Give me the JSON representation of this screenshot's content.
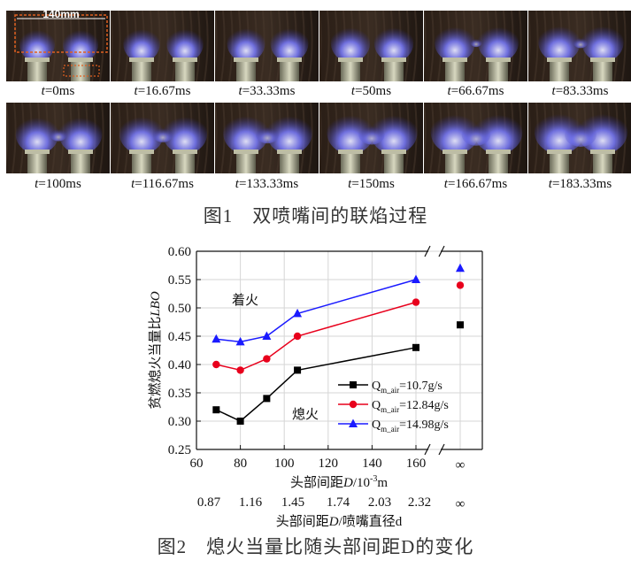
{
  "figure1": {
    "frames": [
      {
        "label_var": "t",
        "label_value": "=0ms"
      },
      {
        "label_var": "t",
        "label_value": "=16.67ms"
      },
      {
        "label_var": "t",
        "label_value": "=33.33ms"
      },
      {
        "label_var": "t",
        "label_value": "=50ms"
      },
      {
        "label_var": "t",
        "label_value": "=66.67ms"
      },
      {
        "label_var": "t",
        "label_value": "=83.33ms"
      },
      {
        "label_var": "t",
        "label_value": "=100ms"
      },
      {
        "label_var": "t",
        "label_value": "=116.67ms"
      },
      {
        "label_var": "t",
        "label_value": "=133.33ms"
      },
      {
        "label_var": "t",
        "label_value": "=150ms"
      },
      {
        "label_var": "t",
        "label_value": "=166.67ms"
      },
      {
        "label_var": "t",
        "label_value": "=183.33ms"
      }
    ],
    "scale_annotation": "140mm",
    "caption": "图1　双喷嘴间的联焰过程"
  },
  "figure2": {
    "caption": "图2　熄火当量比随头部间距D的变化"
  },
  "chart_data": {
    "type": "line",
    "ylabel_prefix": "贫燃熄火当量比",
    "ylabel_italic": "LBO",
    "xlabel_prefix": "头部间距",
    "xlabel_italic": "D",
    "xlabel_suffix": "/10",
    "xlabel_sup": "-3",
    "xlabel_unit": "m",
    "x2label_prefix": "头部间距",
    "x2label_italic": "D",
    "x2label_suffix": "/喷嘴直径d",
    "xticks": [
      "60",
      "80",
      "100",
      "120",
      "140",
      "160"
    ],
    "x_inf_label": "∞",
    "x2ticks": [
      "0.87",
      "1.16",
      "1.45",
      "1.74",
      "2.03",
      "2.32"
    ],
    "x2_inf_label": "∞",
    "yticks": [
      "0.25",
      "0.30",
      "0.35",
      "0.40",
      "0.45",
      "0.50",
      "0.55",
      "0.60"
    ],
    "xlim": [
      60,
      170
    ],
    "ylim": [
      0.25,
      0.6
    ],
    "grid": true,
    "legend_position": "lower-right",
    "annotations": {
      "ignition": "着火",
      "extinction": "熄火"
    },
    "series": [
      {
        "name_base": "Q",
        "name_sub": "m_air",
        "name_value": "=10.7g/s",
        "color": "#000000",
        "marker": "square",
        "x": [
          69,
          80,
          92,
          106,
          160
        ],
        "y": [
          0.32,
          0.3,
          0.34,
          0.39,
          0.43
        ],
        "inf_value": 0.47
      },
      {
        "name_base": "Q",
        "name_sub": "m_air",
        "name_value": "=12.84g/s",
        "color": "#e8001c",
        "marker": "circle",
        "x": [
          69,
          80,
          92,
          106,
          160
        ],
        "y": [
          0.4,
          0.39,
          0.41,
          0.45,
          0.51
        ],
        "inf_value": 0.54
      },
      {
        "name_base": "Q",
        "name_sub": "m_air",
        "name_value": "=14.98g/s",
        "color": "#1a1aff",
        "marker": "triangle",
        "x": [
          69,
          80,
          92,
          106,
          160
        ],
        "y": [
          0.445,
          0.44,
          0.45,
          0.49,
          0.55
        ],
        "inf_value": 0.57
      }
    ]
  }
}
